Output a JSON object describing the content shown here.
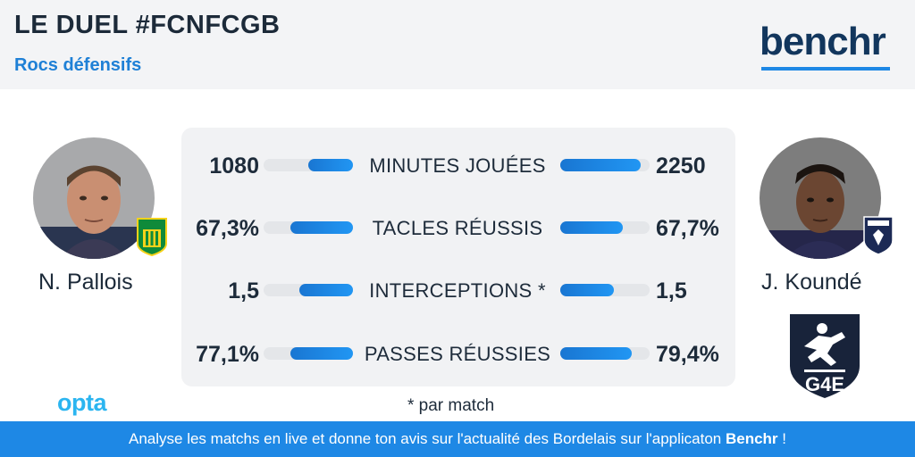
{
  "header": {
    "title": "LE DUEL #FCNFCGB",
    "subtitle": "Rocs défensifs",
    "brand": "benchr"
  },
  "players": {
    "left": {
      "name": "N. Pallois",
      "club_badge_text": "FC NANTES"
    },
    "right": {
      "name": "J. Koundé",
      "club_badge_text": "GIRONDINS DE BORDEAUX"
    }
  },
  "colors": {
    "accent": "#1e88e5",
    "brand": "#12365d",
    "opta": "#2bb5f0",
    "track": "#e4e6e9"
  },
  "chart_data": {
    "type": "bar",
    "categories": [
      "MINUTES JOUÉES",
      "TACLES RÉUSSIS",
      "INTERCEPTIONS *",
      "PASSES RÉUSSIES"
    ],
    "series": [
      {
        "name": "N. Pallois",
        "labels": [
          "1080",
          "67,3%",
          "1,5",
          "77,1%"
        ],
        "values": [
          1080,
          67.3,
          1.5,
          77.1
        ]
      },
      {
        "name": "J. Koundé",
        "labels": [
          "2250",
          "67,7%",
          "1,5",
          "79,4%"
        ],
        "values": [
          2250,
          67.7,
          1.5,
          79.4
        ]
      }
    ],
    "bar_fraction": {
      "left": [
        0.5,
        0.7,
        0.6,
        0.7
      ],
      "right": [
        0.9,
        0.7,
        0.6,
        0.8
      ]
    }
  },
  "footnote": "* par match",
  "source": "opta",
  "footer": {
    "text": "Analyse les matchs en live et donne ton avis sur l'actualité des Bordelais sur l'applicaton ",
    "bold": "Benchr",
    "tail": " !"
  }
}
